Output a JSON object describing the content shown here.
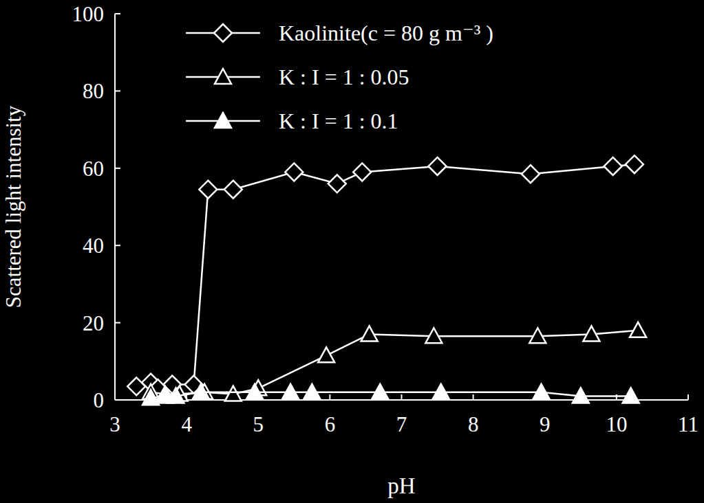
{
  "chart_data": {
    "type": "line",
    "x_label": "pH",
    "y_label": "Scattered light intensity",
    "xlim": [
      3,
      11
    ],
    "xticks": [
      3,
      4,
      5,
      6,
      7,
      8,
      9,
      10,
      11
    ],
    "ylim": [
      0,
      100
    ],
    "yticks": [
      0,
      20,
      40,
      60,
      80,
      100
    ],
    "grid": false,
    "legend": "upper left",
    "series": [
      {
        "name": "Kaolinite(c = 80 g m⁻³ )",
        "color": "#ffffff",
        "marker": "diamond",
        "x": [
          3.3,
          3.5,
          3.6,
          3.8,
          4.1,
          4.3,
          4.65,
          5.5,
          6.1,
          6.45,
          7.5,
          8.8,
          9.95,
          10.25
        ],
        "values": [
          3.5,
          4.5,
          3,
          4,
          4,
          54.5,
          54.5,
          59,
          56,
          59,
          60.5,
          58.5,
          60.5,
          61
        ]
      },
      {
        "name": "K : I = 1 : 0.05",
        "color": "#ffffff",
        "marker": "triangle",
        "x": [
          3.5,
          3.7,
          3.9,
          4.25,
          4.65,
          5.0,
          5.95,
          6.55,
          7.45,
          8.9,
          9.65,
          10.3
        ],
        "values": [
          2,
          1.5,
          1.5,
          2,
          1.5,
          3,
          11.5,
          17,
          16.5,
          16.5,
          17,
          18
        ]
      },
      {
        "name": "K : I = 1 : 0.1",
        "color": "#ffffff",
        "marker": "triangle-filled",
        "x": [
          3.5,
          3.7,
          3.85,
          4.2,
          4.95,
          5.45,
          5.75,
          6.7,
          7.55,
          8.95,
          9.5,
          10.2
        ],
        "values": [
          0.5,
          1,
          1,
          2,
          2,
          2,
          2,
          2,
          2,
          2,
          1,
          1
        ]
      }
    ]
  }
}
